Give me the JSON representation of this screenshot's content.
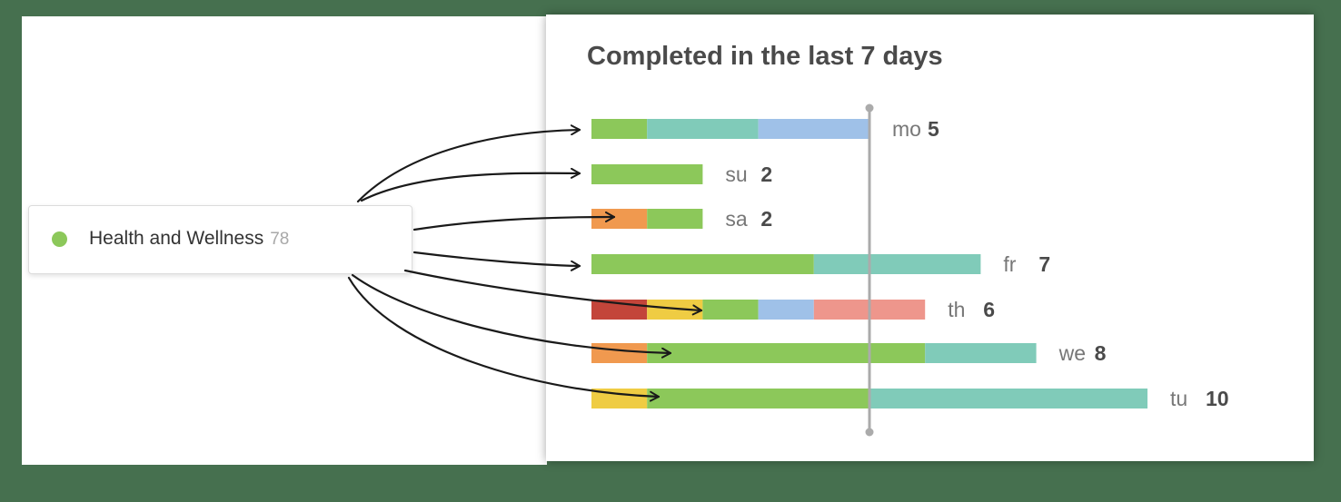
{
  "card": {
    "title": "Completed in the last 7 days"
  },
  "project": {
    "name": "Health and Wellness",
    "count": "78",
    "color": "#8cc85a"
  },
  "colors": {
    "green": "#8cc85a",
    "teal": "#80cbb9",
    "blue": "#9fc1e8",
    "orange": "#f0994f",
    "yellow": "#efcc43",
    "red": "#c3453a",
    "salmon": "#ee968c"
  },
  "chart_data": {
    "type": "bar",
    "orientation": "horizontal",
    "stacked": true,
    "unit_per_segment": 1,
    "reference_line_value": 5,
    "highlighted_project_color": "green",
    "rows": [
      {
        "day": "mo",
        "total": "5",
        "segments": [
          {
            "color": "green",
            "value": 1
          },
          {
            "color": "teal",
            "value": 2
          },
          {
            "color": "blue",
            "value": 2
          }
        ]
      },
      {
        "day": "su",
        "total": "2",
        "segments": [
          {
            "color": "green",
            "value": 2
          }
        ]
      },
      {
        "day": "sa",
        "total": "2",
        "segments": [
          {
            "color": "orange",
            "value": 1
          },
          {
            "color": "green",
            "value": 1
          }
        ]
      },
      {
        "day": "fr",
        "total": "7",
        "segments": [
          {
            "color": "green",
            "value": 4
          },
          {
            "color": "teal",
            "value": 3
          }
        ]
      },
      {
        "day": "th",
        "total": "6",
        "segments": [
          {
            "color": "red",
            "value": 1
          },
          {
            "color": "yellow",
            "value": 1
          },
          {
            "color": "green",
            "value": 1
          },
          {
            "color": "blue",
            "value": 1
          },
          {
            "color": "salmon",
            "value": 2
          }
        ]
      },
      {
        "day": "we",
        "total": "8",
        "segments": [
          {
            "color": "orange",
            "value": 1
          },
          {
            "color": "green",
            "value": 5
          },
          {
            "color": "teal",
            "value": 2
          }
        ]
      },
      {
        "day": "tu",
        "total": "10",
        "segments": [
          {
            "color": "yellow",
            "value": 1
          },
          {
            "color": "green",
            "value": 4
          },
          {
            "color": "teal",
            "value": 5
          }
        ]
      }
    ]
  }
}
